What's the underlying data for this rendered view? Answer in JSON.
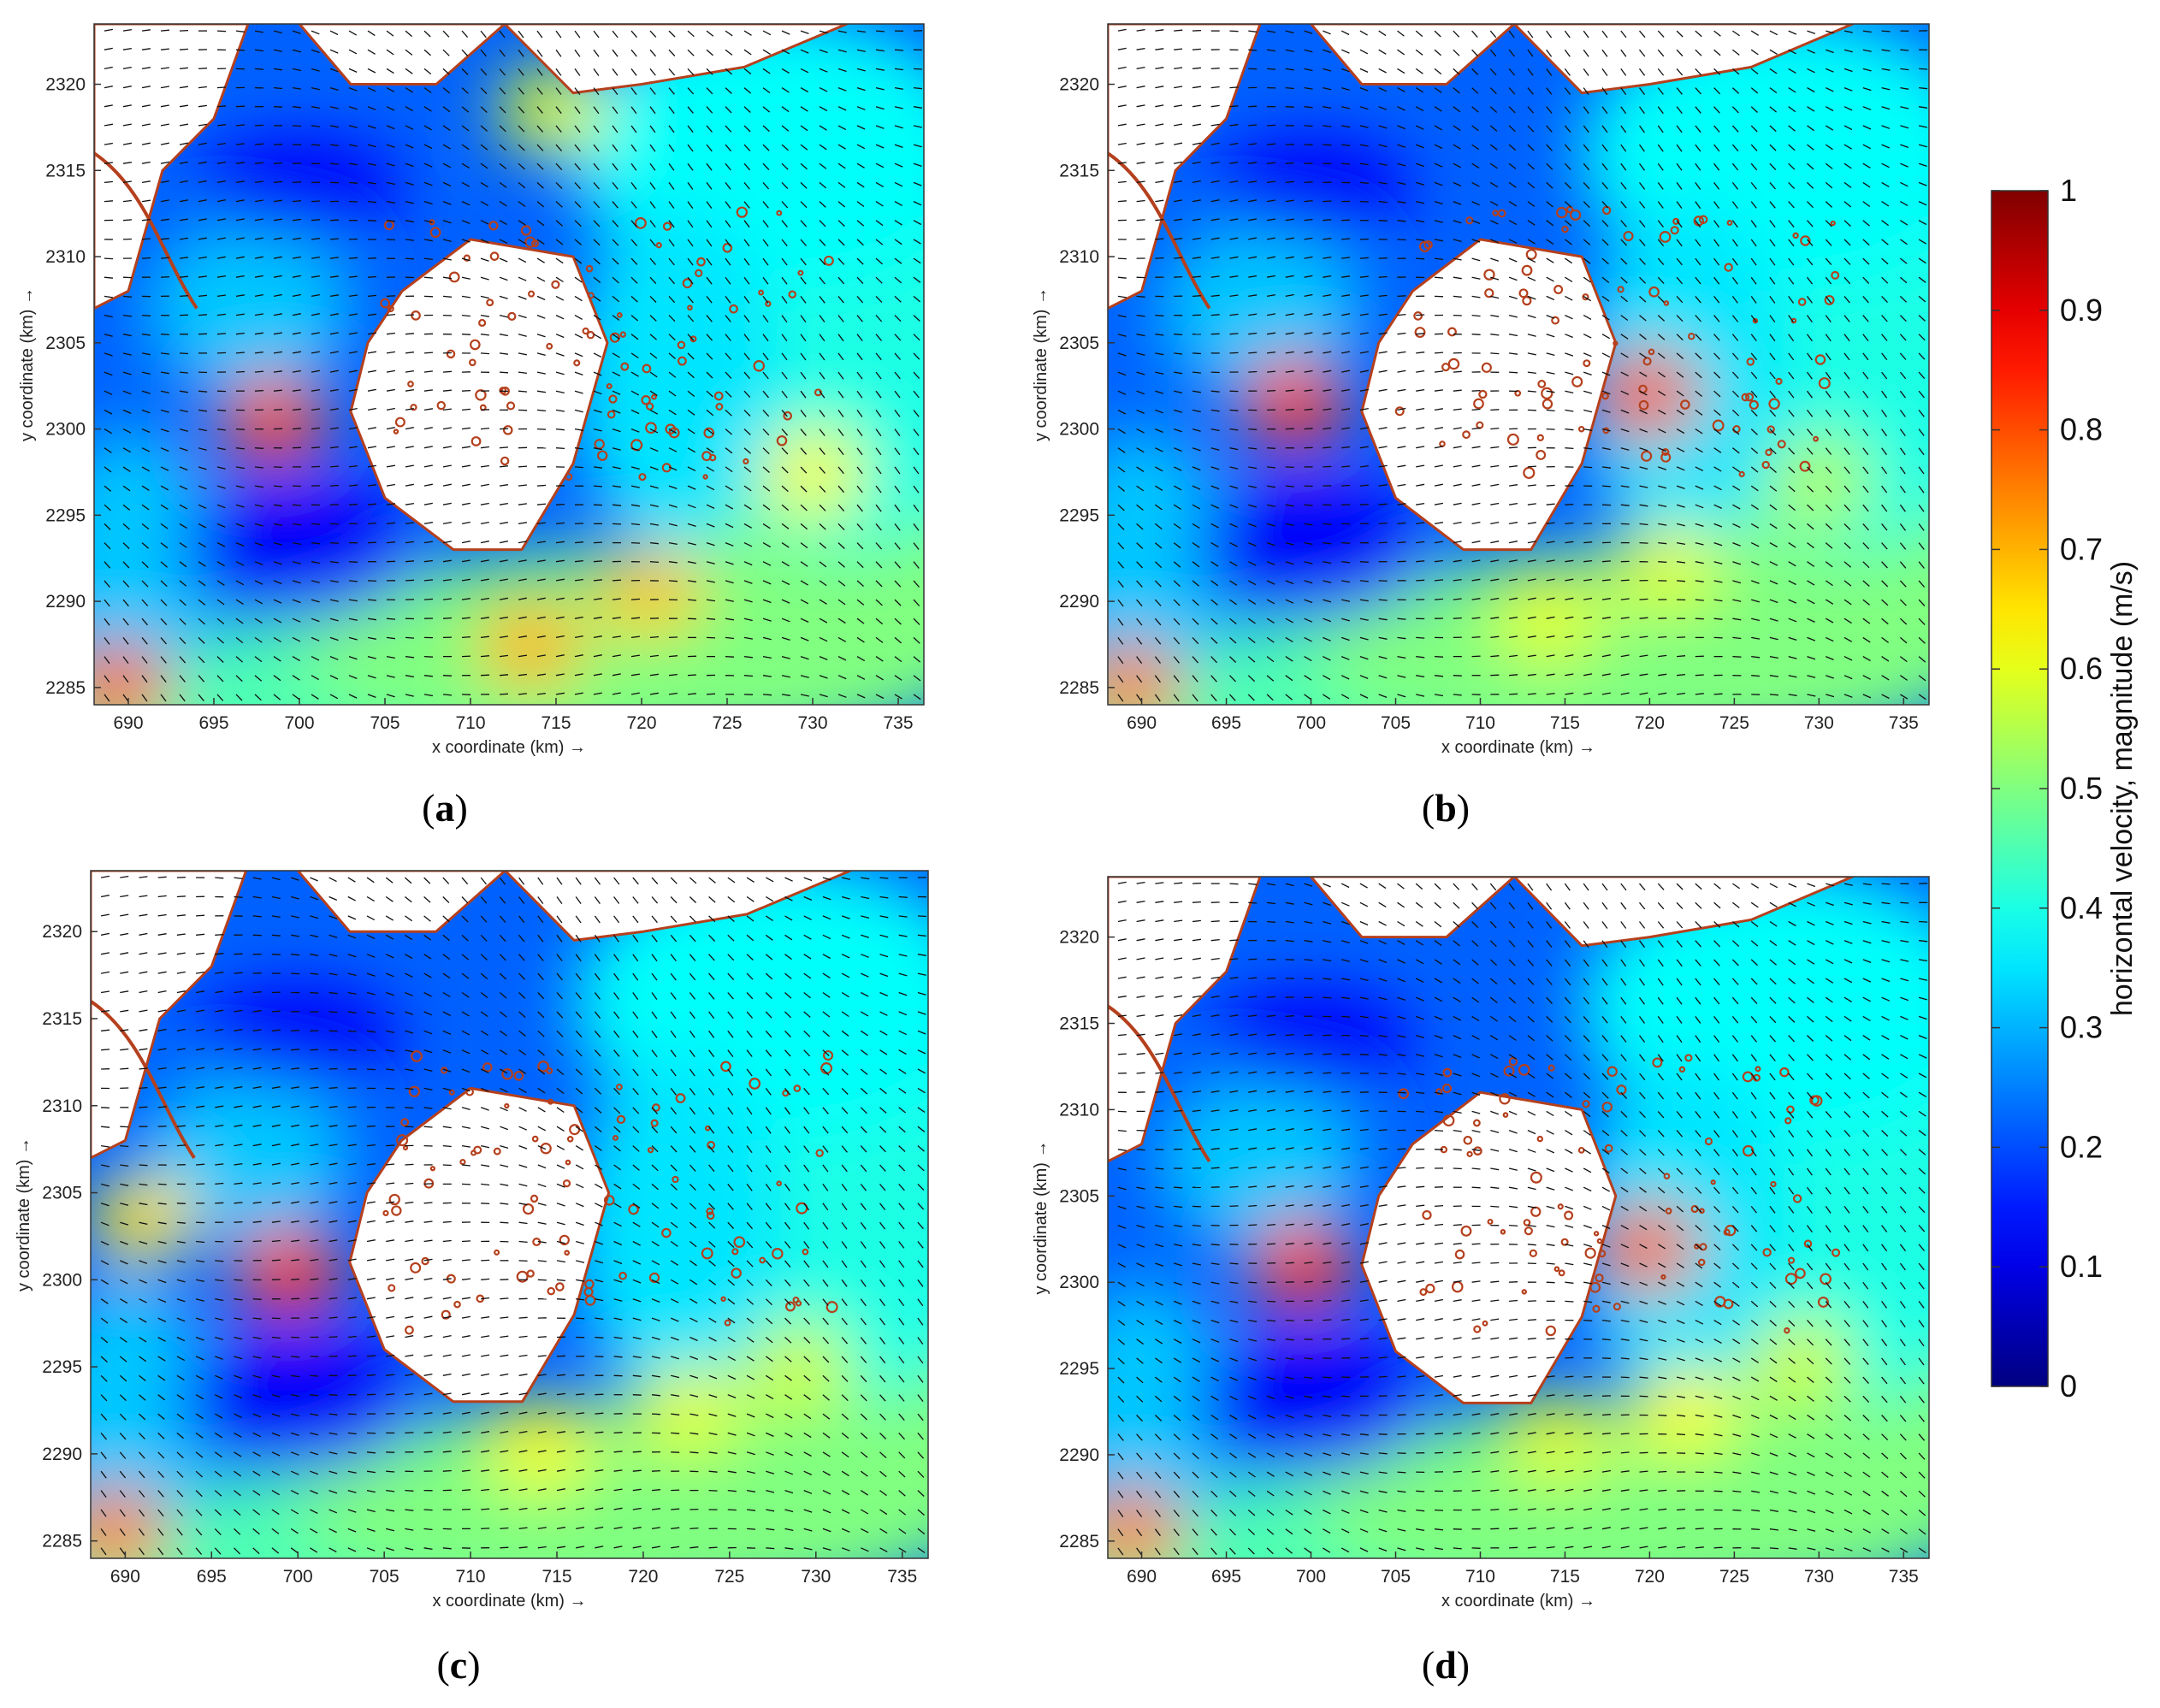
{
  "chart_data": [
    {
      "type": "heatmap",
      "panel_label": "a",
      "xlabel": "x coordinate (km) →",
      "ylabel": "y coordinate (km) →",
      "xlim": [
        688,
        736.5
      ],
      "ylim": [
        2284,
        2323.5
      ],
      "x_ticks": [
        690,
        695,
        700,
        705,
        710,
        715,
        720,
        725,
        730,
        735
      ],
      "y_ticks": [
        2285,
        2290,
        2295,
        2300,
        2305,
        2310,
        2315,
        2320
      ],
      "hotspots": [
        {
          "x": 698.5,
          "y": 2300.5,
          "speed": 0.8
        },
        {
          "x": 713.5,
          "y": 2287.5,
          "speed": 0.7
        },
        {
          "x": 720.5,
          "y": 2290.5,
          "speed": 0.68
        },
        {
          "x": 730,
          "y": 2297.5,
          "speed": 0.62
        },
        {
          "x": 689.3,
          "y": 2285,
          "speed": 0.78
        },
        {
          "x": 714.8,
          "y": 2318.5,
          "speed": 0.6
        }
      ]
    },
    {
      "type": "heatmap",
      "panel_label": "b",
      "xlabel": "x coordinate (km) →",
      "ylabel": "y coordinate (km) →",
      "xlim": [
        688,
        736.5
      ],
      "ylim": [
        2284,
        2323.5
      ],
      "x_ticks": [
        690,
        695,
        700,
        705,
        710,
        715,
        720,
        725,
        730,
        735
      ],
      "y_ticks": [
        2285,
        2290,
        2295,
        2300,
        2305,
        2310,
        2315,
        2320
      ],
      "hotspots": [
        {
          "x": 699,
          "y": 2301.5,
          "speed": 0.82
        },
        {
          "x": 714,
          "y": 2289,
          "speed": 0.6
        },
        {
          "x": 721,
          "y": 2292,
          "speed": 0.6
        },
        {
          "x": 730,
          "y": 2297,
          "speed": 0.55
        },
        {
          "x": 689.3,
          "y": 2285,
          "speed": 0.75
        },
        {
          "x": 719.8,
          "y": 2302,
          "speed": 0.8
        }
      ]
    },
    {
      "type": "heatmap",
      "panel_label": "c",
      "xlabel": "x coordinate (km) →",
      "ylabel": "y coordinate (km) →",
      "xlim": [
        688,
        736.5
      ],
      "ylim": [
        2284,
        2323.5
      ],
      "x_ticks": [
        690,
        695,
        700,
        705,
        710,
        715,
        720,
        725,
        730,
        735
      ],
      "y_ticks": [
        2285,
        2290,
        2295,
        2300,
        2305,
        2310,
        2315,
        2320
      ],
      "hotspots": [
        {
          "x": 699.5,
          "y": 2300.5,
          "speed": 0.82
        },
        {
          "x": 714,
          "y": 2290.5,
          "speed": 0.62
        },
        {
          "x": 722.5,
          "y": 2292.5,
          "speed": 0.6
        },
        {
          "x": 729,
          "y": 2295,
          "speed": 0.58
        },
        {
          "x": 689.3,
          "y": 2285.5,
          "speed": 0.75
        },
        {
          "x": 691,
          "y": 2303.5,
          "speed": 0.65
        }
      ]
    },
    {
      "type": "heatmap",
      "panel_label": "d",
      "xlabel": "x coordinate (km) →",
      "ylabel": "y coordinate (km) →",
      "xlim": [
        688,
        736.5
      ],
      "ylim": [
        2284,
        2323.5
      ],
      "x_ticks": [
        690,
        695,
        700,
        705,
        710,
        715,
        720,
        725,
        730,
        735
      ],
      "y_ticks": [
        2285,
        2290,
        2295,
        2300,
        2305,
        2310,
        2315,
        2320
      ],
      "hotspots": [
        {
          "x": 699.5,
          "y": 2301,
          "speed": 0.82
        },
        {
          "x": 714.5,
          "y": 2291,
          "speed": 0.6
        },
        {
          "x": 722,
          "y": 2292.5,
          "speed": 0.62
        },
        {
          "x": 729,
          "y": 2295.5,
          "speed": 0.58
        },
        {
          "x": 689.3,
          "y": 2285.5,
          "speed": 0.75
        },
        {
          "x": 719.8,
          "y": 2302,
          "speed": 0.78
        }
      ]
    }
  ],
  "colorbar": {
    "label": "horizontal velocity, magnitude (m/s)",
    "min": 0,
    "max": 1,
    "ticks": [
      "0",
      "0.1",
      "0.2",
      "0.3",
      "0.4",
      "0.5",
      "0.6",
      "0.7",
      "0.8",
      "0.9",
      "1"
    ],
    "colormap": "jet",
    "stops": [
      "#00008f",
      "#0000ff",
      "#00ffff",
      "#ffff00",
      "#ff0000",
      "#800000"
    ]
  },
  "colors": {
    "land": "#ffffff",
    "coastline": "#b5401d",
    "arrows": "#111111"
  }
}
